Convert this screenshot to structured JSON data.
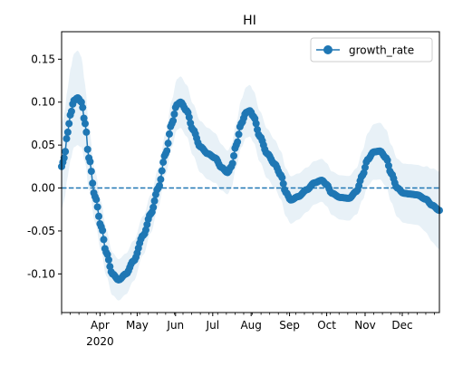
{
  "chart_data": {
    "type": "line",
    "title": "HI",
    "xlabel": "",
    "ylabel": "",
    "legend": {
      "placement": "top-right",
      "entries": [
        "growth_rate"
      ]
    },
    "x_year_label": "2020",
    "x_range": [
      "2020-03-01",
      "2020-12-31"
    ],
    "x_ticks": [
      {
        "date": "2020-04-01",
        "label": "Apr"
      },
      {
        "date": "2020-05-01",
        "label": "May"
      },
      {
        "date": "2020-06-01",
        "label": "Jun"
      },
      {
        "date": "2020-07-01",
        "label": "Jul"
      },
      {
        "date": "2020-08-01",
        "label": "Aug"
      },
      {
        "date": "2020-09-01",
        "label": "Sep"
      },
      {
        "date": "2020-10-01",
        "label": "Oct"
      },
      {
        "date": "2020-11-01",
        "label": "Nov"
      },
      {
        "date": "2020-12-01",
        "label": "Dec"
      }
    ],
    "y_range": [
      -0.145,
      0.182
    ],
    "y_ticks": [
      "0.15",
      "0.10",
      "0.05",
      "0.00",
      "-0.05",
      "-0.10"
    ],
    "y_tick_values": [
      0.15,
      0.1,
      0.05,
      0.0,
      -0.05,
      -0.1
    ],
    "reference_line": {
      "y": 0.0,
      "style": "dashed"
    },
    "colors": {
      "series": "#1f77b4",
      "band": "#1f77b4"
    },
    "series": [
      {
        "name": "growth_rate",
        "x_start": "2020-03-01",
        "x_step_days": 1,
        "anchors": [
          {
            "date": "2020-03-01",
            "y": 0.025
          },
          {
            "date": "2020-03-03",
            "y": 0.035
          },
          {
            "date": "2020-03-06",
            "y": 0.065
          },
          {
            "date": "2020-03-08",
            "y": 0.085
          },
          {
            "date": "2020-03-11",
            "y": 0.102
          },
          {
            "date": "2020-03-14",
            "y": 0.105
          },
          {
            "date": "2020-03-17",
            "y": 0.1
          },
          {
            "date": "2020-03-20",
            "y": 0.075
          },
          {
            "date": "2020-03-23",
            "y": 0.035
          },
          {
            "date": "2020-03-28",
            "y": -0.01
          },
          {
            "date": "2020-04-02",
            "y": -0.045
          },
          {
            "date": "2020-04-06",
            "y": -0.075
          },
          {
            "date": "2020-04-11",
            "y": -0.1
          },
          {
            "date": "2020-04-16",
            "y": -0.107
          },
          {
            "date": "2020-04-22",
            "y": -0.1
          },
          {
            "date": "2020-04-28",
            "y": -0.085
          },
          {
            "date": "2020-05-06",
            "y": -0.055
          },
          {
            "date": "2020-05-12",
            "y": -0.03
          },
          {
            "date": "2020-05-18",
            "y": 0.0
          },
          {
            "date": "2020-05-24",
            "y": 0.04
          },
          {
            "date": "2020-05-29",
            "y": 0.075
          },
          {
            "date": "2020-06-02",
            "y": 0.097
          },
          {
            "date": "2020-06-05",
            "y": 0.1
          },
          {
            "date": "2020-06-10",
            "y": 0.09
          },
          {
            "date": "2020-06-15",
            "y": 0.068
          },
          {
            "date": "2020-06-21",
            "y": 0.048
          },
          {
            "date": "2020-06-27",
            "y": 0.04
          },
          {
            "date": "2020-07-03",
            "y": 0.035
          },
          {
            "date": "2020-07-08",
            "y": 0.024
          },
          {
            "date": "2020-07-13",
            "y": 0.018
          },
          {
            "date": "2020-07-16",
            "y": 0.025
          },
          {
            "date": "2020-07-20",
            "y": 0.05
          },
          {
            "date": "2020-07-24",
            "y": 0.075
          },
          {
            "date": "2020-07-28",
            "y": 0.088
          },
          {
            "date": "2020-07-31",
            "y": 0.09
          },
          {
            "date": "2020-08-03",
            "y": 0.083
          },
          {
            "date": "2020-08-08",
            "y": 0.06
          },
          {
            "date": "2020-08-14",
            "y": 0.04
          },
          {
            "date": "2020-08-20",
            "y": 0.028
          },
          {
            "date": "2020-08-25",
            "y": 0.015
          },
          {
            "date": "2020-08-29",
            "y": -0.005
          },
          {
            "date": "2020-09-02",
            "y": -0.014
          },
          {
            "date": "2020-09-08",
            "y": -0.01
          },
          {
            "date": "2020-09-15",
            "y": -0.002
          },
          {
            "date": "2020-09-21",
            "y": 0.006
          },
          {
            "date": "2020-09-27",
            "y": 0.009
          },
          {
            "date": "2020-10-01",
            "y": 0.004
          },
          {
            "date": "2020-10-05",
            "y": -0.006
          },
          {
            "date": "2020-10-12",
            "y": -0.011
          },
          {
            "date": "2020-10-19",
            "y": -0.012
          },
          {
            "date": "2020-10-25",
            "y": -0.004
          },
          {
            "date": "2020-10-30",
            "y": 0.015
          },
          {
            "date": "2020-11-03",
            "y": 0.033
          },
          {
            "date": "2020-11-08",
            "y": 0.042
          },
          {
            "date": "2020-11-13",
            "y": 0.043
          },
          {
            "date": "2020-11-18",
            "y": 0.035
          },
          {
            "date": "2020-11-22",
            "y": 0.017
          },
          {
            "date": "2020-11-27",
            "y": 0.0
          },
          {
            "date": "2020-12-02",
            "y": -0.006
          },
          {
            "date": "2020-12-07",
            "y": -0.007
          },
          {
            "date": "2020-12-13",
            "y": -0.008
          },
          {
            "date": "2020-12-20",
            "y": -0.013
          },
          {
            "date": "2020-12-25",
            "y": -0.02
          },
          {
            "date": "2020-12-31",
            "y": -0.026
          }
        ],
        "band_halfwidth_anchors": [
          {
            "date": "2020-03-01",
            "y": 0.05
          },
          {
            "date": "2020-03-14",
            "y": 0.055
          },
          {
            "date": "2020-03-28",
            "y": 0.03
          },
          {
            "date": "2020-04-16",
            "y": 0.024
          },
          {
            "date": "2020-05-18",
            "y": 0.022
          },
          {
            "date": "2020-06-05",
            "y": 0.03
          },
          {
            "date": "2020-06-27",
            "y": 0.03
          },
          {
            "date": "2020-07-16",
            "y": 0.025
          },
          {
            "date": "2020-07-31",
            "y": 0.03
          },
          {
            "date": "2020-08-25",
            "y": 0.028
          },
          {
            "date": "2020-09-27",
            "y": 0.025
          },
          {
            "date": "2020-10-19",
            "y": 0.026
          },
          {
            "date": "2020-11-13",
            "y": 0.033
          },
          {
            "date": "2020-12-13",
            "y": 0.035
          },
          {
            "date": "2020-12-31",
            "y": 0.045
          }
        ]
      }
    ]
  }
}
